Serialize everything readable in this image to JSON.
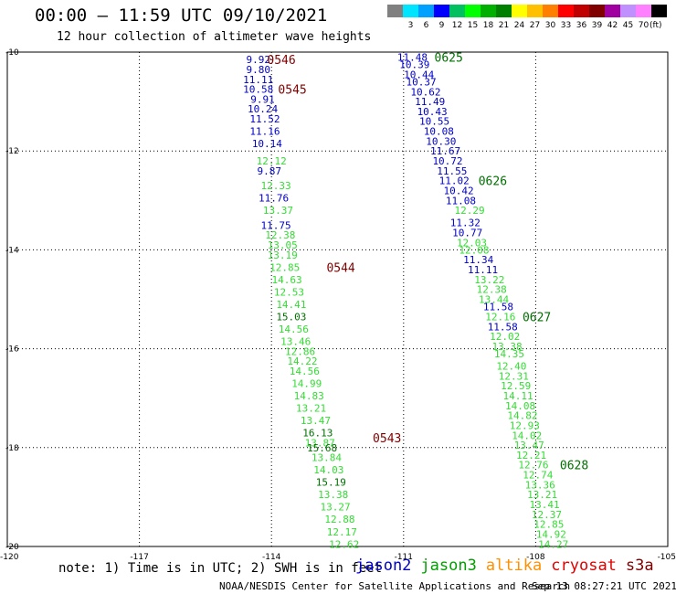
{
  "header": {
    "title": "00:00 – 11:59 UTC 09/10/2021",
    "subtitle": "12 hour collection of altimeter wave heights"
  },
  "legend": {
    "unit": "(ft)",
    "swatches": [
      {
        "label": "",
        "color": "#808080"
      },
      {
        "label": "3",
        "color": "#00e5ff"
      },
      {
        "label": "6",
        "color": "#00a0ff"
      },
      {
        "label": "9",
        "color": "#0000ff"
      },
      {
        "label": "12",
        "color": "#00c060"
      },
      {
        "label": "15",
        "color": "#00ff00"
      },
      {
        "label": "18",
        "color": "#00b000"
      },
      {
        "label": "21",
        "color": "#008000"
      },
      {
        "label": "24",
        "color": "#ffff00"
      },
      {
        "label": "27",
        "color": "#ffc000"
      },
      {
        "label": "30",
        "color": "#ff8000"
      },
      {
        "label": "33",
        "color": "#ff0000"
      },
      {
        "label": "36",
        "color": "#c00000"
      },
      {
        "label": "39",
        "color": "#800000"
      },
      {
        "label": "42",
        "color": "#a000a0"
      },
      {
        "label": "45",
        "color": "#c090ff"
      },
      {
        "label": "70",
        "color": "#ff80ff"
      },
      {
        "label": "",
        "color": "#000000"
      }
    ]
  },
  "footer": {
    "note": "note: 1) Time is in UTC; 2) SWH is in feet",
    "satellites": [
      {
        "name": "jason2",
        "color": "#0000c8"
      },
      {
        "name": "jason3",
        "color": "#00a000"
      },
      {
        "name": "altika",
        "color": "#ff9000"
      },
      {
        "name": "cryosat",
        "color": "#e00000"
      },
      {
        "name": "s3a",
        "color": "#800000"
      }
    ],
    "credit": "NOAA/NESDIS Center for Satellite Applications and Research",
    "timestamp": "Sep 13 08:27:21 UTC 2021"
  },
  "colors": {
    "jason2": "#0000c8",
    "jason3_light": "#33dd33",
    "jason3_dark": "#007000",
    "s3a": "#800000",
    "grid": "#000000"
  },
  "chart_data": {
    "type": "scatter",
    "title": "12 hour collection of altimeter wave heights",
    "xlim": [
      -120,
      -105
    ],
    "ylim": [
      -20,
      -10
    ],
    "x_ticks": [
      "-120",
      "-117",
      "-114",
      "-111",
      "-108",
      "-105"
    ],
    "y_ticks": [
      "-10",
      "-12",
      "-14",
      "-16",
      "-18",
      "-20"
    ],
    "grid": true,
    "series": [
      {
        "name": "jason2",
        "color": "#0000c8",
        "points": [
          {
            "lon": -114.3,
            "lat": -10.15,
            "label": "9.92"
          },
          {
            "lon": -114.3,
            "lat": -10.35,
            "label": "9.80"
          },
          {
            "lon": -114.3,
            "lat": -10.55,
            "label": "11.11"
          },
          {
            "lon": -114.3,
            "lat": -10.75,
            "label": "10.58"
          },
          {
            "lon": -114.2,
            "lat": -10.95,
            "label": "9.91"
          },
          {
            "lon": -114.2,
            "lat": -11.15,
            "label": "10.24"
          },
          {
            "lon": -114.15,
            "lat": -11.35,
            "label": "11.52"
          },
          {
            "lon": -114.15,
            "lat": -11.6,
            "label": "11.16"
          },
          {
            "lon": -114.1,
            "lat": -11.85,
            "label": "10.14"
          },
          {
            "lon": -114.05,
            "lat": -12.4,
            "label": "9.87"
          },
          {
            "lon": -113.95,
            "lat": -12.95,
            "label": "11.76"
          },
          {
            "lon": -113.9,
            "lat": -13.5,
            "label": "11.75"
          }
        ]
      },
      {
        "name": "jason2",
        "color": "#0000c8",
        "points": [
          {
            "lon": -110.8,
            "lat": -10.1,
            "label": "11.48"
          },
          {
            "lon": -110.75,
            "lat": -10.25,
            "label": "10.39"
          },
          {
            "lon": -110.65,
            "lat": -10.45,
            "label": "10.44"
          },
          {
            "lon": -110.6,
            "lat": -10.6,
            "label": "10.37"
          },
          {
            "lon": -110.5,
            "lat": -10.8,
            "label": "10.62"
          },
          {
            "lon": -110.4,
            "lat": -11.0,
            "label": "11.49"
          },
          {
            "lon": -110.35,
            "lat": -11.2,
            "label": "10.43"
          },
          {
            "lon": -110.3,
            "lat": -11.4,
            "label": "10.55"
          },
          {
            "lon": -110.2,
            "lat": -11.6,
            "label": "10.08"
          },
          {
            "lon": -110.15,
            "lat": -11.8,
            "label": "10.30"
          },
          {
            "lon": -110.05,
            "lat": -12.0,
            "label": "11.67"
          },
          {
            "lon": -110.0,
            "lat": -12.2,
            "label": "10.72"
          },
          {
            "lon": -109.9,
            "lat": -12.4,
            "label": "11.55"
          },
          {
            "lon": -109.85,
            "lat": -12.6,
            "label": "11.02"
          },
          {
            "lon": -109.75,
            "lat": -12.8,
            "label": "10.42"
          },
          {
            "lon": -109.7,
            "lat": -13.0,
            "label": "11.08"
          },
          {
            "lon": -109.6,
            "lat": -13.45,
            "label": "11.32"
          },
          {
            "lon": -109.55,
            "lat": -13.65,
            "label": "10.77"
          },
          {
            "lon": -109.3,
            "lat": -14.2,
            "label": "11.34"
          },
          {
            "lon": -109.2,
            "lat": -14.4,
            "label": "11.11"
          },
          {
            "lon": -108.85,
            "lat": -15.15,
            "label": "11.58"
          },
          {
            "lon": -108.75,
            "lat": -15.55,
            "label": "11.58"
          }
        ]
      },
      {
        "name": "jason3",
        "color": "#33dd33",
        "points": [
          {
            "lon": -114.0,
            "lat": -12.2,
            "label": "12.12"
          },
          {
            "lon": -113.9,
            "lat": -12.7,
            "label": "12.33"
          },
          {
            "lon": -113.85,
            "lat": -13.2,
            "label": "13.37"
          },
          {
            "lon": -113.8,
            "lat": -13.7,
            "label": "12.38"
          },
          {
            "lon": -113.75,
            "lat": -13.9,
            "label": "13.05"
          },
          {
            "lon": -113.75,
            "lat": -14.1,
            "label": "13.19"
          },
          {
            "lon": -113.7,
            "lat": -14.35,
            "label": "12.85"
          },
          {
            "lon": -113.65,
            "lat": -14.6,
            "label": "14.63"
          },
          {
            "lon": -113.6,
            "lat": -14.85,
            "label": "12.53"
          },
          {
            "lon": -113.55,
            "lat": -15.1,
            "label": "14.41"
          },
          {
            "lon": -113.5,
            "lat": -15.6,
            "label": "14.56"
          },
          {
            "lon": -113.45,
            "lat": -15.85,
            "label": "13.46"
          },
          {
            "lon": -113.35,
            "lat": -16.05,
            "label": "12.86"
          },
          {
            "lon": -113.3,
            "lat": -16.25,
            "label": "14.22"
          },
          {
            "lon": -113.25,
            "lat": -16.45,
            "label": "14.56"
          },
          {
            "lon": -113.2,
            "lat": -16.7,
            "label": "14.99"
          },
          {
            "lon": -113.15,
            "lat": -16.95,
            "label": "14.83"
          },
          {
            "lon": -113.1,
            "lat": -17.2,
            "label": "13.21"
          },
          {
            "lon": -113.0,
            "lat": -17.45,
            "label": "13.47"
          },
          {
            "lon": -112.9,
            "lat": -17.9,
            "label": "13.87"
          },
          {
            "lon": -112.75,
            "lat": -18.2,
            "label": "13.84"
          },
          {
            "lon": -112.7,
            "lat": -18.45,
            "label": "14.03"
          },
          {
            "lon": -112.6,
            "lat": -18.95,
            "label": "13.38"
          },
          {
            "lon": -112.55,
            "lat": -19.2,
            "label": "13.27"
          },
          {
            "lon": -112.45,
            "lat": -19.45,
            "label": "12.88"
          },
          {
            "lon": -112.4,
            "lat": -19.7,
            "label": "12.17"
          },
          {
            "lon": -112.35,
            "lat": -19.95,
            "label": "12.62"
          }
        ]
      },
      {
        "name": "jason3",
        "color": "#007000",
        "points": [
          {
            "lon": -113.55,
            "lat": -15.35,
            "label": "15.03"
          },
          {
            "lon": -112.95,
            "lat": -17.7,
            "label": "16.13"
          },
          {
            "lon": -112.85,
            "lat": -18.0,
            "label": "15.68"
          },
          {
            "lon": -112.65,
            "lat": -18.7,
            "label": "15.19"
          }
        ]
      },
      {
        "name": "jason3",
        "color": "#33dd33",
        "points": [
          {
            "lon": -109.5,
            "lat": -13.2,
            "label": "12.29"
          },
          {
            "lon": -109.45,
            "lat": -13.85,
            "label": "12.03"
          },
          {
            "lon": -109.4,
            "lat": -14.0,
            "label": "12.08"
          },
          {
            "lon": -109.05,
            "lat": -14.6,
            "label": "13.22"
          },
          {
            "lon": -109.0,
            "lat": -14.8,
            "label": "12.38"
          },
          {
            "lon": -108.95,
            "lat": -15.0,
            "label": "13.44"
          },
          {
            "lon": -108.8,
            "lat": -15.35,
            "label": "12.16"
          },
          {
            "lon": -108.7,
            "lat": -15.75,
            "label": "12.02"
          },
          {
            "lon": -108.65,
            "lat": -15.95,
            "label": "13.38"
          },
          {
            "lon": -108.6,
            "lat": -16.1,
            "label": "14.35"
          },
          {
            "lon": -108.55,
            "lat": -16.35,
            "label": "12.40"
          },
          {
            "lon": -108.5,
            "lat": -16.55,
            "label": "12.31"
          },
          {
            "lon": -108.45,
            "lat": -16.75,
            "label": "12.59"
          },
          {
            "lon": -108.4,
            "lat": -16.95,
            "label": "14.11"
          },
          {
            "lon": -108.35,
            "lat": -17.15,
            "label": "14.08"
          },
          {
            "lon": -108.3,
            "lat": -17.35,
            "label": "14.82"
          },
          {
            "lon": -108.25,
            "lat": -17.55,
            "label": "12.93"
          },
          {
            "lon": -108.2,
            "lat": -17.75,
            "label": "14.02"
          },
          {
            "lon": -108.15,
            "lat": -17.95,
            "label": "13.47"
          },
          {
            "lon": -108.1,
            "lat": -18.15,
            "label": "12.21"
          },
          {
            "lon": -108.05,
            "lat": -18.35,
            "label": "12.76"
          },
          {
            "lon": -107.95,
            "lat": -18.55,
            "label": "12.74"
          },
          {
            "lon": -107.9,
            "lat": -18.75,
            "label": "13.36"
          },
          {
            "lon": -107.85,
            "lat": -18.95,
            "label": "13.21"
          },
          {
            "lon": -107.8,
            "lat": -19.15,
            "label": "13.41"
          },
          {
            "lon": -107.75,
            "lat": -19.35,
            "label": "12.37"
          },
          {
            "lon": -107.7,
            "lat": -19.55,
            "label": "12.85"
          },
          {
            "lon": -107.65,
            "lat": -19.75,
            "label": "14.92"
          },
          {
            "lon": -107.6,
            "lat": -19.95,
            "label": "14.27"
          }
        ]
      }
    ],
    "time_labels": [
      {
        "text": "0546",
        "lon": -114.1,
        "lat": -10.15,
        "color": "#800000"
      },
      {
        "text": "0545",
        "lon": -113.85,
        "lat": -10.75,
        "color": "#800000"
      },
      {
        "text": "0544",
        "lon": -112.75,
        "lat": -14.35,
        "color": "#800000"
      },
      {
        "text": "0543",
        "lon": -111.7,
        "lat": -17.8,
        "color": "#800000"
      },
      {
        "text": "0625",
        "lon": -110.3,
        "lat": -10.1,
        "color": "#007000"
      },
      {
        "text": "0626",
        "lon": -109.3,
        "lat": -12.6,
        "color": "#007000"
      },
      {
        "text": "0627",
        "lon": -108.3,
        "lat": -15.35,
        "color": "#007000"
      },
      {
        "text": "0628",
        "lon": -107.45,
        "lat": -18.35,
        "color": "#007000"
      }
    ]
  }
}
